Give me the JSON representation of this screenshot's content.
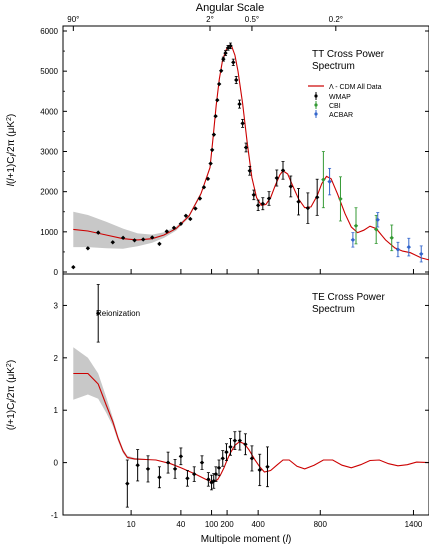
{
  "chart_data": [
    {
      "type": "scatter",
      "panel": "TT",
      "title": "TT Cross Power Spectrum",
      "top_axis_title": "Angular Scale",
      "top_axis_ticks": [
        {
          "label": "90°",
          "l": 2
        },
        {
          "label": "2°",
          "l": 90
        },
        {
          "label": "0.5°",
          "l": 360
        },
        {
          "label": "0.2°",
          "l": 900
        }
      ],
      "ylabel": "l(l+1)C_l/2π (μK²)",
      "ylim": [
        0,
        6000
      ],
      "yticks": [
        0,
        1000,
        2000,
        3000,
        4000,
        5000,
        6000
      ],
      "legend": {
        "position": "right",
        "entries": [
          {
            "label": "Λ - CDM All Data",
            "color": "#cc0000",
            "kind": "line"
          },
          {
            "label": "WMAP",
            "color": "#000000",
            "kind": "errorbar"
          },
          {
            "label": "CBI",
            "color": "#339933",
            "kind": "errorbar"
          },
          {
            "label": "ACBAR",
            "color": "#3366cc",
            "kind": "errorbar"
          }
        ]
      },
      "model": {
        "name": "Λ - CDM All Data",
        "color": "#cc0000",
        "band_color": "#c8c8c8",
        "points": [
          [
            2,
            1060
          ],
          [
            3,
            1020
          ],
          [
            5,
            920
          ],
          [
            8,
            830
          ],
          [
            12,
            800
          ],
          [
            18,
            830
          ],
          [
            25,
            920
          ],
          [
            35,
            1080
          ],
          [
            50,
            1390
          ],
          [
            70,
            1950
          ],
          [
            90,
            2600
          ],
          [
            110,
            3350
          ],
          [
            130,
            4150
          ],
          [
            150,
            4800
          ],
          [
            170,
            5250
          ],
          [
            190,
            5500
          ],
          [
            210,
            5640
          ],
          [
            230,
            5620
          ],
          [
            250,
            5400
          ],
          [
            270,
            5000
          ],
          [
            300,
            4200
          ],
          [
            330,
            3200
          ],
          [
            360,
            2350
          ],
          [
            390,
            1850
          ],
          [
            420,
            1660
          ],
          [
            450,
            1680
          ],
          [
            480,
            1850
          ],
          [
            510,
            2150
          ],
          [
            540,
            2420
          ],
          [
            560,
            2520
          ],
          [
            590,
            2440
          ],
          [
            620,
            2170
          ],
          [
            660,
            1820
          ],
          [
            700,
            1600
          ],
          [
            740,
            1620
          ],
          [
            780,
            1900
          ],
          [
            810,
            2200
          ],
          [
            840,
            2380
          ],
          [
            870,
            2320
          ],
          [
            910,
            1950
          ],
          [
            960,
            1450
          ],
          [
            1000,
            1120
          ],
          [
            1040,
            980
          ],
          [
            1080,
            1040
          ],
          [
            1120,
            1140
          ],
          [
            1160,
            1080
          ],
          [
            1220,
            800
          ],
          [
            1280,
            600
          ],
          [
            1330,
            520
          ],
          [
            1380,
            480
          ],
          [
            1450,
            350
          ],
          [
            1500,
            300
          ]
        ],
        "band_upper": [
          [
            2,
            1500
          ],
          [
            3,
            1420
          ],
          [
            5,
            1250
          ],
          [
            8,
            1080
          ],
          [
            12,
            960
          ],
          [
            18,
            930
          ],
          [
            25,
            990
          ],
          [
            35,
            1130
          ],
          [
            50,
            1430
          ],
          [
            70,
            1990
          ]
        ],
        "band_lower": [
          [
            2,
            620
          ],
          [
            3,
            620
          ],
          [
            5,
            590
          ],
          [
            8,
            580
          ],
          [
            12,
            640
          ],
          [
            18,
            730
          ],
          [
            25,
            850
          ],
          [
            35,
            1030
          ],
          [
            50,
            1350
          ],
          [
            70,
            1910
          ]
        ]
      },
      "series": [
        {
          "name": "WMAP",
          "color": "#000000",
          "points": [
            {
              "x": 2,
              "y": 120,
              "err": 0
            },
            {
              "x": 3,
              "y": 590,
              "err": 0
            },
            {
              "x": 4,
              "y": 980,
              "err": 0
            },
            {
              "x": 6,
              "y": 740,
              "err": 0
            },
            {
              "x": 8,
              "y": 850,
              "err": 0
            },
            {
              "x": 11,
              "y": 790,
              "err": 0
            },
            {
              "x": 14,
              "y": 810,
              "err": 0
            },
            {
              "x": 18,
              "y": 860,
              "err": 0
            },
            {
              "x": 22,
              "y": 700,
              "err": 0
            },
            {
              "x": 27,
              "y": 1010,
              "err": 0
            },
            {
              "x": 33,
              "y": 1100,
              "err": 0
            },
            {
              "x": 40,
              "y": 1200,
              "err": 0
            },
            {
              "x": 46,
              "y": 1400,
              "err": 0
            },
            {
              "x": 52,
              "y": 1320,
              "err": 0
            },
            {
              "x": 60,
              "y": 1580,
              "err": 0
            },
            {
              "x": 68,
              "y": 1830,
              "err": 0
            },
            {
              "x": 76,
              "y": 2110,
              "err": 0
            },
            {
              "x": 85,
              "y": 2320,
              "err": 0
            },
            {
              "x": 94,
              "y": 2700,
              "err": 0
            },
            {
              "x": 104,
              "y": 3040,
              "err": 0
            },
            {
              "x": 115,
              "y": 3420,
              "err": 0
            },
            {
              "x": 126,
              "y": 3880,
              "err": 0
            },
            {
              "x": 137,
              "y": 4280,
              "err": 0
            },
            {
              "x": 149,
              "y": 4680,
              "err": 0
            },
            {
              "x": 162,
              "y": 5010,
              "err": 0
            },
            {
              "x": 176,
              "y": 5300,
              "err": 50
            },
            {
              "x": 190,
              "y": 5450,
              "err": 60
            },
            {
              "x": 206,
              "y": 5580,
              "err": 60
            },
            {
              "x": 222,
              "y": 5630,
              "err": 70
            },
            {
              "x": 240,
              "y": 5220,
              "err": 80
            },
            {
              "x": 259,
              "y": 4780,
              "err": 90
            },
            {
              "x": 280,
              "y": 4180,
              "err": 100
            },
            {
              "x": 300,
              "y": 3700,
              "err": 100
            },
            {
              "x": 322,
              "y": 3100,
              "err": 110
            },
            {
              "x": 346,
              "y": 2520,
              "err": 110
            },
            {
              "x": 372,
              "y": 1920,
              "err": 120
            },
            {
              "x": 400,
              "y": 1660,
              "err": 130
            },
            {
              "x": 430,
              "y": 1700,
              "err": 150
            },
            {
              "x": 470,
              "y": 1830,
              "err": 170
            },
            {
              "x": 520,
              "y": 2340,
              "err": 200
            },
            {
              "x": 560,
              "y": 2530,
              "err": 220
            },
            {
              "x": 610,
              "y": 2130,
              "err": 260
            },
            {
              "x": 660,
              "y": 1750,
              "err": 330
            },
            {
              "x": 720,
              "y": 1590,
              "err": 380
            },
            {
              "x": 780,
              "y": 1860,
              "err": 450
            }
          ]
        },
        {
          "name": "CBI",
          "color": "#339933",
          "points": [
            {
              "x": 820,
              "y": 2300,
              "err": 700
            },
            {
              "x": 930,
              "y": 1820,
              "err": 550
            },
            {
              "x": 1030,
              "y": 1150,
              "err": 450
            },
            {
              "x": 1160,
              "y": 1060,
              "err": 350
            },
            {
              "x": 1260,
              "y": 850,
              "err": 320
            }
          ]
        },
        {
          "name": "ACBAR",
          "color": "#3366cc",
          "points": [
            {
              "x": 860,
              "y": 2250,
              "err": 330
            },
            {
              "x": 1010,
              "y": 800,
              "err": 180
            },
            {
              "x": 1170,
              "y": 1300,
              "err": 180
            },
            {
              "x": 1300,
              "y": 560,
              "err": 180
            },
            {
              "x": 1370,
              "y": 620,
              "err": 220
            },
            {
              "x": 1450,
              "y": 450,
              "err": 200
            }
          ]
        }
      ]
    },
    {
      "type": "scatter",
      "panel": "TE",
      "title": "TE Cross Power Spectrum",
      "annotation": "Reionization",
      "ylabel": "(l+1)C_l/2π (μK²)",
      "xlabel": "Multipole moment (l)",
      "xticks": [
        10,
        40,
        100,
        200,
        400,
        800,
        1400
      ],
      "ylim": [
        -1,
        3.6
      ],
      "yticks": [
        -1,
        0,
        1,
        2,
        3
      ],
      "model": {
        "name": "Λ - CDM All Data",
        "color": "#cc0000",
        "band_color": "#c8c8c8",
        "points": [
          [
            2,
            1.7
          ],
          [
            3,
            1.7
          ],
          [
            4,
            1.5
          ],
          [
            5,
            1.1
          ],
          [
            6,
            0.78
          ],
          [
            7,
            0.45
          ],
          [
            8,
            0.22
          ],
          [
            9,
            0.1
          ],
          [
            11,
            0.07
          ],
          [
            15,
            0.06
          ],
          [
            20,
            0.05
          ],
          [
            30,
            -0.02
          ],
          [
            40,
            -0.1
          ],
          [
            60,
            -0.22
          ],
          [
            80,
            -0.32
          ],
          [
            100,
            -0.36
          ],
          [
            120,
            -0.36
          ],
          [
            140,
            -0.32
          ],
          [
            160,
            -0.22
          ],
          [
            180,
            -0.1
          ],
          [
            200,
            0.05
          ],
          [
            220,
            0.18
          ],
          [
            250,
            0.33
          ],
          [
            280,
            0.4
          ],
          [
            310,
            0.36
          ],
          [
            340,
            0.25
          ],
          [
            380,
            0.05
          ],
          [
            410,
            -0.08
          ],
          [
            440,
            -0.18
          ],
          [
            480,
            -0.15
          ],
          [
            520,
            -0.05
          ],
          [
            560,
            0.05
          ],
          [
            600,
            0.05
          ],
          [
            650,
            -0.07
          ],
          [
            700,
            -0.12
          ],
          [
            760,
            -0.05
          ],
          [
            820,
            0.05
          ],
          [
            880,
            0.05
          ],
          [
            940,
            -0.05
          ],
          [
            1000,
            -0.1
          ],
          [
            1060,
            -0.04
          ],
          [
            1120,
            0.04
          ],
          [
            1180,
            0.05
          ],
          [
            1240,
            -0.02
          ],
          [
            1300,
            -0.06
          ],
          [
            1360,
            -0.04
          ],
          [
            1420,
            0.01
          ],
          [
            1500,
            0.0
          ]
        ],
        "band_upper": [
          [
            2,
            2.2
          ],
          [
            3,
            2.0
          ],
          [
            4,
            1.7
          ],
          [
            5,
            1.25
          ],
          [
            6,
            0.86
          ],
          [
            7,
            0.5
          ],
          [
            8,
            0.26
          ],
          [
            9,
            0.13
          ],
          [
            11,
            0.09
          ],
          [
            15,
            0.07
          ]
        ],
        "band_lower": [
          [
            2,
            1.2
          ],
          [
            3,
            1.3
          ],
          [
            4,
            1.22
          ],
          [
            5,
            0.95
          ],
          [
            6,
            0.7
          ],
          [
            7,
            0.4
          ],
          [
            8,
            0.18
          ],
          [
            9,
            0.07
          ],
          [
            11,
            0.05
          ],
          [
            15,
            0.05
          ]
        ]
      },
      "series": [
        {
          "name": "WMAP",
          "color": "#000000",
          "points": [
            {
              "x": 4,
              "y": 2.85,
              "err": 0.55
            },
            {
              "x": 9,
              "y": -0.4,
              "err": 0.45
            },
            {
              "x": 12,
              "y": -0.05,
              "err": 0.3
            },
            {
              "x": 16,
              "y": -0.12,
              "err": 0.25
            },
            {
              "x": 22,
              "y": -0.28,
              "err": 0.2
            },
            {
              "x": 28,
              "y": 0.0,
              "err": 0.2
            },
            {
              "x": 34,
              "y": -0.12,
              "err": 0.18
            },
            {
              "x": 40,
              "y": 0.12,
              "err": 0.16
            },
            {
              "x": 48,
              "y": -0.3,
              "err": 0.15
            },
            {
              "x": 58,
              "y": -0.22,
              "err": 0.14
            },
            {
              "x": 72,
              "y": 0.0,
              "err": 0.13
            },
            {
              "x": 86,
              "y": -0.32,
              "err": 0.13
            },
            {
              "x": 100,
              "y": -0.38,
              "err": 0.14
            },
            {
              "x": 114,
              "y": -0.35,
              "err": 0.14
            },
            {
              "x": 128,
              "y": -0.22,
              "err": 0.14
            },
            {
              "x": 148,
              "y": -0.1,
              "err": 0.15
            },
            {
              "x": 172,
              "y": 0.08,
              "err": 0.15
            },
            {
              "x": 196,
              "y": 0.2,
              "err": 0.16
            },
            {
              "x": 222,
              "y": 0.3,
              "err": 0.16
            },
            {
              "x": 250,
              "y": 0.42,
              "err": 0.17
            },
            {
              "x": 282,
              "y": 0.42,
              "err": 0.18
            },
            {
              "x": 318,
              "y": 0.35,
              "err": 0.2
            },
            {
              "x": 360,
              "y": 0.08,
              "err": 0.24
            },
            {
              "x": 410,
              "y": -0.14,
              "err": 0.3
            },
            {
              "x": 460,
              "y": -0.08,
              "err": 0.38
            }
          ]
        }
      ]
    }
  ]
}
